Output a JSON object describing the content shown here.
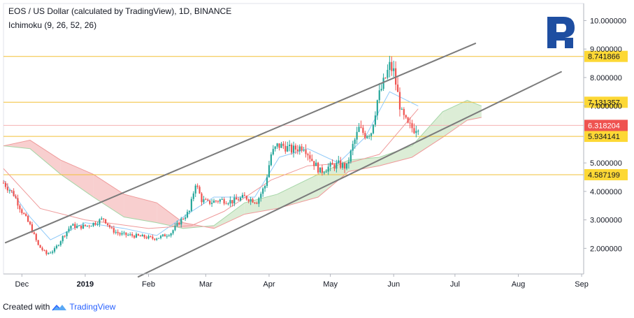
{
  "header": {
    "title": "EOS / US Dollar (calculated by TradingView), 1D, BINANCE",
    "indicator": "Ichimoku (9, 26, 52, 26)"
  },
  "footer": {
    "created_with": "Created with",
    "brand": "TradingView"
  },
  "colors": {
    "up": "#26a69a",
    "down": "#ef5350",
    "level": "#f2c037",
    "level_label_bg": "#fdd835",
    "current_label_bg": "#ef5350",
    "channel": "#7b7b7b",
    "kumo_bull": "#dcedd6",
    "kumo_bear": "#f8cfcf",
    "tenkan": "#90caf9",
    "kijun": "#ef9a9a",
    "logo": "#1e4ea1"
  },
  "icons": [
    "r-broker-logo",
    "tradingview-cloud-icon"
  ],
  "chart_data": {
    "type": "candlestick",
    "x_axis": {
      "ticks": [
        {
          "label": "Dec",
          "date": "2018-12-01"
        },
        {
          "label": "2019",
          "date": "2019-01-01"
        },
        {
          "label": "Feb",
          "date": "2019-02-01"
        },
        {
          "label": "Mar",
          "date": "2019-03-01"
        },
        {
          "label": "Apr",
          "date": "2019-04-01"
        },
        {
          "label": "May",
          "date": "2019-05-01"
        },
        {
          "label": "Jun",
          "date": "2019-06-01"
        },
        {
          "label": "Jul",
          "date": "2019-07-01"
        },
        {
          "label": "Aug",
          "date": "2019-08-01"
        },
        {
          "label": "Sep",
          "date": "2019-09-01"
        }
      ],
      "range": [
        "2018-11-22",
        "2019-09-02"
      ]
    },
    "y_axis": {
      "range": [
        1.1,
        10.6
      ],
      "ticks": [
        {
          "label": "2.000000",
          "value": 2
        },
        {
          "label": "3.000000",
          "value": 3
        },
        {
          "label": "4.000000",
          "value": 4
        },
        {
          "label": "5.000000",
          "value": 5
        },
        {
          "label": "7.000000",
          "value": 7
        },
        {
          "label": "8.000000",
          "value": 8
        },
        {
          "label": "9.000000",
          "value": 9
        },
        {
          "label": "10.000000",
          "value": 10
        }
      ]
    },
    "levels": [
      {
        "label": "8.741866",
        "value": 8.741866
      },
      {
        "label": "7.131357",
        "value": 7.131357
      },
      {
        "label": "5.934141",
        "value": 5.934141
      },
      {
        "label": "4.587199",
        "value": 4.587199
      }
    ],
    "current_price": {
      "label": "6.318204",
      "value": 6.318204
    },
    "channel_lines": [
      {
        "start": [
          "2018-11-23",
          2.2
        ],
        "end": [
          "2019-07-11",
          9.2
        ]
      },
      {
        "start": [
          "2019-01-27",
          1.0
        ],
        "end": [
          "2019-08-22",
          8.2
        ]
      }
    ],
    "price_path": [
      [
        "2018-11-22",
        4.3
      ],
      [
        "2018-11-27",
        3.9
      ],
      [
        "2018-12-01",
        3.3
      ],
      [
        "2018-12-05",
        2.8
      ],
      [
        "2018-12-09",
        2.1
      ],
      [
        "2018-12-13",
        1.8
      ],
      [
        "2018-12-17",
        1.95
      ],
      [
        "2018-12-21",
        2.4
      ],
      [
        "2018-12-25",
        2.8
      ],
      [
        "2018-12-29",
        2.75
      ],
      [
        "2019-01-02",
        2.8
      ],
      [
        "2019-01-06",
        2.9
      ],
      [
        "2019-01-10",
        3.05
      ],
      [
        "2019-01-14",
        2.65
      ],
      [
        "2019-01-18",
        2.5
      ],
      [
        "2019-01-24",
        2.45
      ],
      [
        "2019-01-30",
        2.4
      ],
      [
        "2019-02-03",
        2.35
      ],
      [
        "2019-02-07",
        2.4
      ],
      [
        "2019-02-12",
        2.55
      ],
      [
        "2019-02-17",
        3.0
      ],
      [
        "2019-02-21",
        3.3
      ],
      [
        "2019-02-24",
        4.3
      ],
      [
        "2019-02-27",
        3.7
      ],
      [
        "2019-03-02",
        3.6
      ],
      [
        "2019-03-08",
        3.7
      ],
      [
        "2019-03-14",
        3.65
      ],
      [
        "2019-03-20",
        3.8
      ],
      [
        "2019-03-26",
        3.65
      ],
      [
        "2019-03-30",
        4.2
      ],
      [
        "2019-04-02",
        5.3
      ],
      [
        "2019-04-05",
        5.6
      ],
      [
        "2019-04-08",
        5.6
      ],
      [
        "2019-04-12",
        5.45
      ],
      [
        "2019-04-18",
        5.6
      ],
      [
        "2019-04-22",
        5.1
      ],
      [
        "2019-04-26",
        4.7
      ],
      [
        "2019-04-30",
        4.85
      ],
      [
        "2019-05-05",
        4.95
      ],
      [
        "2019-05-09",
        4.85
      ],
      [
        "2019-05-12",
        5.6
      ],
      [
        "2019-05-15",
        6.2
      ],
      [
        "2019-05-18",
        6.0
      ],
      [
        "2019-05-21",
        6.1
      ],
      [
        "2019-05-24",
        7.2
      ],
      [
        "2019-05-27",
        7.8
      ],
      [
        "2019-05-30",
        8.4
      ],
      [
        "2019-06-01",
        8.2
      ],
      [
        "2019-06-03",
        7.4
      ],
      [
        "2019-06-05",
        6.7
      ],
      [
        "2019-06-08",
        6.3
      ],
      [
        "2019-06-11",
        6.2
      ],
      [
        "2019-06-13",
        6.32
      ]
    ],
    "tenkan": [
      [
        "2018-11-22",
        4.4
      ],
      [
        "2018-12-05",
        3.1
      ],
      [
        "2018-12-15",
        2.3
      ],
      [
        "2019-01-01",
        2.9
      ],
      [
        "2019-01-20",
        2.7
      ],
      [
        "2019-02-05",
        2.45
      ],
      [
        "2019-02-20",
        3.2
      ],
      [
        "2019-03-05",
        3.8
      ],
      [
        "2019-03-25",
        3.8
      ],
      [
        "2019-04-06",
        5.2
      ],
      [
        "2019-04-20",
        5.5
      ],
      [
        "2019-05-05",
        5.0
      ],
      [
        "2019-05-18",
        5.9
      ],
      [
        "2019-05-30",
        7.5
      ],
      [
        "2019-06-13",
        7.0
      ]
    ],
    "kijun": [
      [
        "2018-11-22",
        4.8
      ],
      [
        "2018-12-10",
        3.4
      ],
      [
        "2019-01-01",
        3.0
      ],
      [
        "2019-02-01",
        2.7
      ],
      [
        "2019-02-22",
        2.8
      ],
      [
        "2019-03-10",
        3.3
      ],
      [
        "2019-04-02",
        4.4
      ],
      [
        "2019-04-20",
        4.9
      ],
      [
        "2019-05-10",
        5.0
      ],
      [
        "2019-05-25",
        5.3
      ],
      [
        "2019-06-13",
        6.9
      ]
    ],
    "cloud": [
      {
        "date": "2018-11-22",
        "span_a": 5.6,
        "span_b": 5.6
      },
      {
        "date": "2018-12-05",
        "span_a": 5.5,
        "span_b": 5.8
      },
      {
        "date": "2018-12-20",
        "span_a": 4.6,
        "span_b": 5.1
      },
      {
        "date": "2019-01-05",
        "span_a": 3.8,
        "span_b": 4.6
      },
      {
        "date": "2019-01-20",
        "span_a": 3.1,
        "span_b": 3.9
      },
      {
        "date": "2019-02-05",
        "span_a": 2.9,
        "span_b": 3.6
      },
      {
        "date": "2019-02-18",
        "span_a": 2.7,
        "span_b": 2.9
      },
      {
        "date": "2019-03-05",
        "span_a": 2.8,
        "span_b": 2.7
      },
      {
        "date": "2019-03-20",
        "span_a": 3.6,
        "span_b": 3.2
      },
      {
        "date": "2019-04-05",
        "span_a": 3.9,
        "span_b": 3.4
      },
      {
        "date": "2019-04-25",
        "span_a": 4.6,
        "span_b": 3.8
      },
      {
        "date": "2019-05-10",
        "span_a": 5.1,
        "span_b": 4.7
      },
      {
        "date": "2019-05-25",
        "span_a": 5.2,
        "span_b": 4.9
      },
      {
        "date": "2019-06-10",
        "span_a": 5.6,
        "span_b": 5.2
      },
      {
        "date": "2019-06-25",
        "span_a": 6.8,
        "span_b": 5.9
      },
      {
        "date": "2019-07-07",
        "span_a": 7.2,
        "span_b": 6.5
      },
      {
        "date": "2019-07-14",
        "span_a": 7.0,
        "span_b": 6.6
      }
    ]
  }
}
